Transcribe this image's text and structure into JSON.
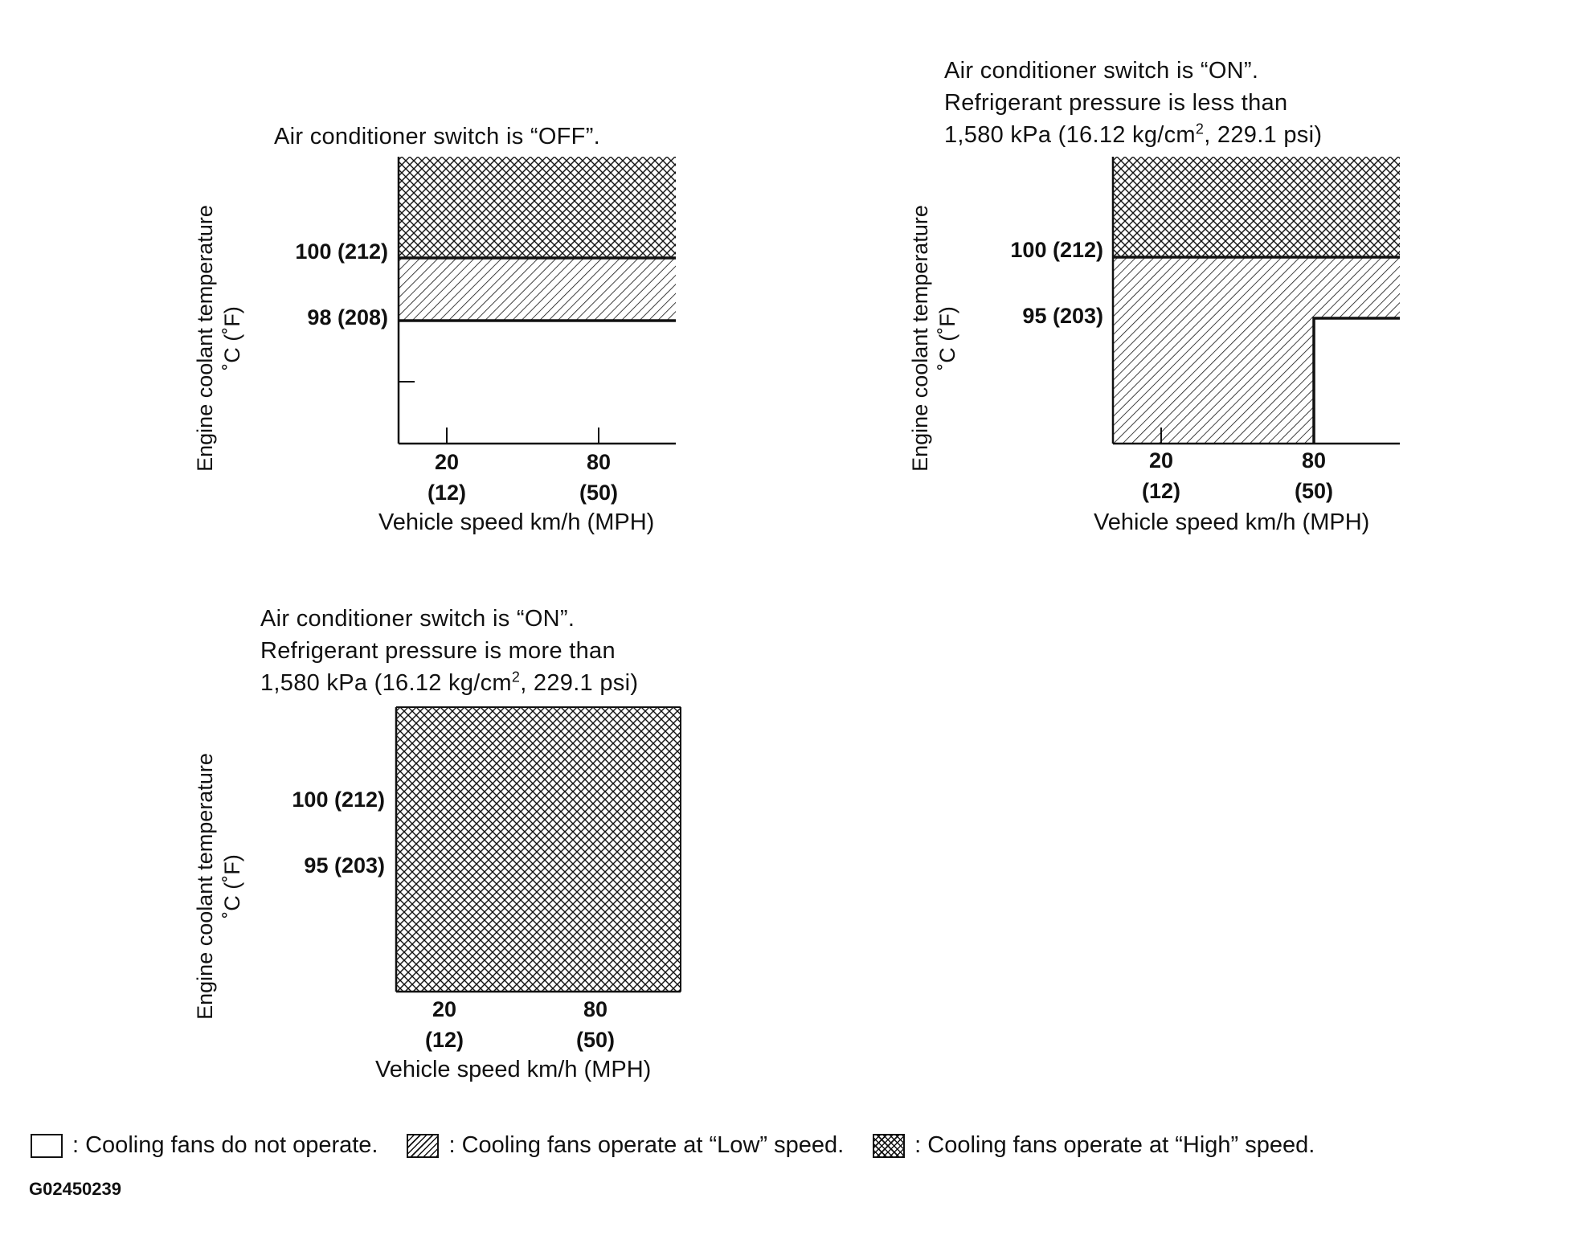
{
  "charts": [
    {
      "title_lines": [
        "Air conditioner switch is “OFF”."
      ],
      "ylabel_line1": "Engine coolant temperature",
      "ylabel_line2": "˚C (˚F)",
      "yticks": [
        "100 (212)",
        "98 (208)"
      ],
      "xticks": [
        {
          "kmh": "20",
          "mph": "(12)"
        },
        {
          "kmh": "80",
          "mph": "(50)"
        }
      ],
      "xlabel": "Vehicle speed km/h (MPH)"
    },
    {
      "title_lines": [
        "Air conditioner switch is “ON”.",
        "Refrigerant pressure is less than",
        "1,580 kPa (16.12 kg/cm",
        "2",
        ", 229.1 psi)"
      ],
      "ylabel_line1": "Engine coolant temperature",
      "ylabel_line2": "˚C (˚F)",
      "yticks": [
        "100 (212)",
        "95 (203)"
      ],
      "xticks": [
        {
          "kmh": "20",
          "mph": "(12)"
        },
        {
          "kmh": "80",
          "mph": "(50)"
        }
      ],
      "xlabel": "Vehicle speed km/h (MPH)"
    },
    {
      "title_lines": [
        "Air conditioner switch is “ON”.",
        "Refrigerant pressure is more than",
        "1,580 kPa (16.12 kg/cm",
        "2",
        ", 229.1 psi)"
      ],
      "ylabel_line1": "Engine coolant temperature",
      "ylabel_line2": "˚C (˚F)",
      "yticks": [
        "100 (212)",
        "95 (203)"
      ],
      "xticks": [
        {
          "kmh": "20",
          "mph": "(12)"
        },
        {
          "kmh": "80",
          "mph": "(50)"
        }
      ],
      "xlabel": "Vehicle speed km/h (MPH)"
    }
  ],
  "legend": {
    "none": ": Cooling fans do not operate.",
    "low": ": Cooling fans operate at “Low” speed.",
    "high": ": Cooling fans operate at “High” speed."
  },
  "figure_code": "G02450239"
}
